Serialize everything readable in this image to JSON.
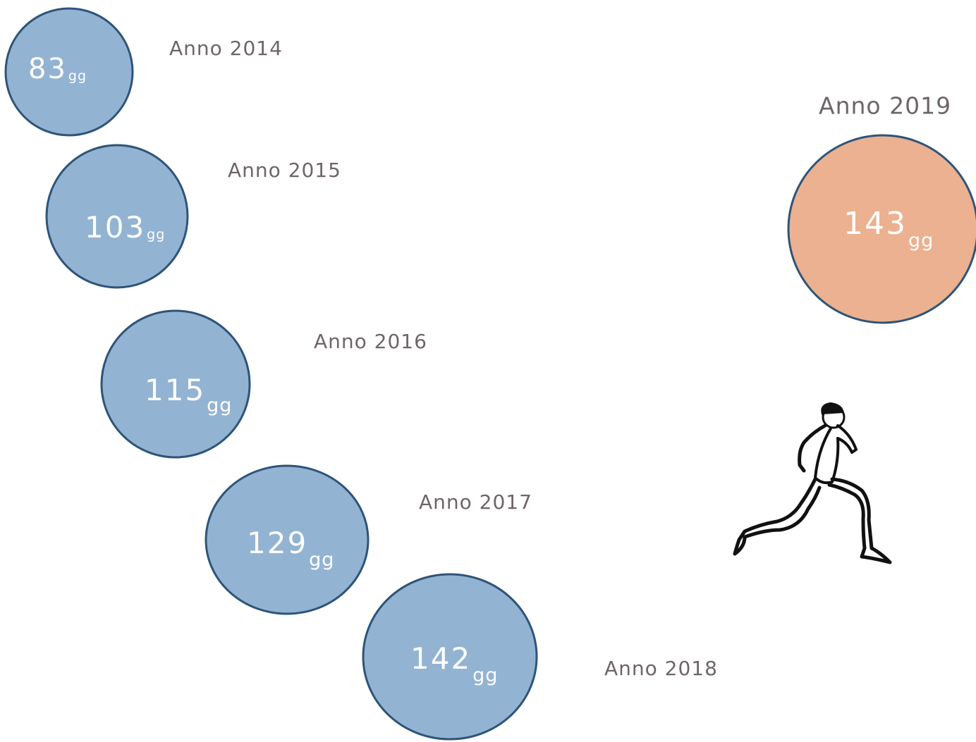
{
  "items": [
    {
      "label": "Anno 2014",
      "value": "83",
      "unit": "gg"
    },
    {
      "label": "Anno 2015",
      "value": "103",
      "unit": "gg"
    },
    {
      "label": "Anno 2016",
      "value": "115",
      "unit": "gg"
    },
    {
      "label": "Anno 2017",
      "value": "129",
      "unit": "gg"
    },
    {
      "label": "Anno 2018",
      "value": "142",
      "unit": "gg"
    },
    {
      "label": "Anno 2019",
      "value": "143",
      "unit": "gg"
    }
  ]
}
